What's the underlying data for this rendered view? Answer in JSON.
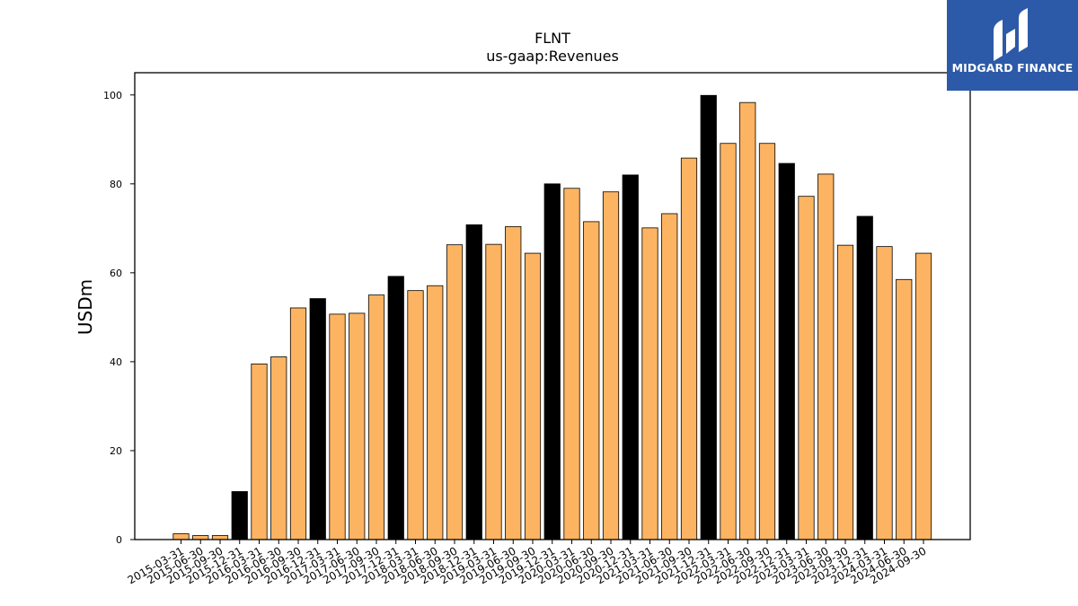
{
  "brand": {
    "logo_text": "MIDGARD FINANCE"
  },
  "colors": {
    "regular_bar": "#fdb462",
    "year_end_bar": "#000000",
    "bar_edge": "#000000",
    "logo_bg": "#2c5aa8"
  },
  "chart_data": {
    "type": "bar",
    "title": "FLNT",
    "subtitle": "us-gaap:Revenues",
    "xlabel": "",
    "ylabel": "USDm",
    "ylim": [
      0,
      105
    ],
    "yticks": [
      0,
      20,
      40,
      60,
      80,
      100
    ],
    "grid": false,
    "categories": [
      "2015-03-31",
      "2015-06-30",
      "2015-09-30",
      "2015-12-31",
      "2016-03-31",
      "2016-06-30",
      "2016-09-30",
      "2016-12-31",
      "2017-03-31",
      "2017-06-30",
      "2017-09-30",
      "2017-12-31",
      "2018-03-31",
      "2018-06-30",
      "2018-09-30",
      "2018-12-31",
      "2019-03-31",
      "2019-06-30",
      "2019-09-30",
      "2019-12-31",
      "2020-03-31",
      "2020-06-30",
      "2020-09-30",
      "2020-12-31",
      "2021-03-31",
      "2021-06-30",
      "2021-09-30",
      "2021-12-31",
      "2022-03-31",
      "2022-06-30",
      "2022-09-30",
      "2022-12-31",
      "2023-03-31",
      "2023-06-30",
      "2023-09-30",
      "2023-12-31",
      "2024-03-31",
      "2024-06-30",
      "2024-09-30"
    ],
    "values": [
      1.3,
      0.9,
      0.9,
      10.8,
      39.5,
      41.1,
      52.1,
      54.2,
      50.7,
      50.9,
      55.0,
      59.2,
      56.0,
      57.1,
      66.3,
      70.8,
      66.4,
      70.4,
      64.4,
      80.0,
      79.0,
      71.5,
      78.2,
      82.0,
      70.1,
      73.3,
      85.8,
      99.9,
      89.1,
      98.3,
      89.1,
      84.6,
      77.2,
      82.2,
      66.2,
      72.7,
      65.9,
      58.5,
      64.4
    ],
    "year_end_highlight": [
      false,
      false,
      false,
      true,
      false,
      false,
      false,
      true,
      false,
      false,
      false,
      true,
      false,
      false,
      false,
      true,
      false,
      false,
      false,
      true,
      false,
      false,
      false,
      true,
      false,
      false,
      false,
      true,
      false,
      false,
      false,
      true,
      false,
      false,
      false,
      true,
      false,
      false,
      false
    ]
  }
}
